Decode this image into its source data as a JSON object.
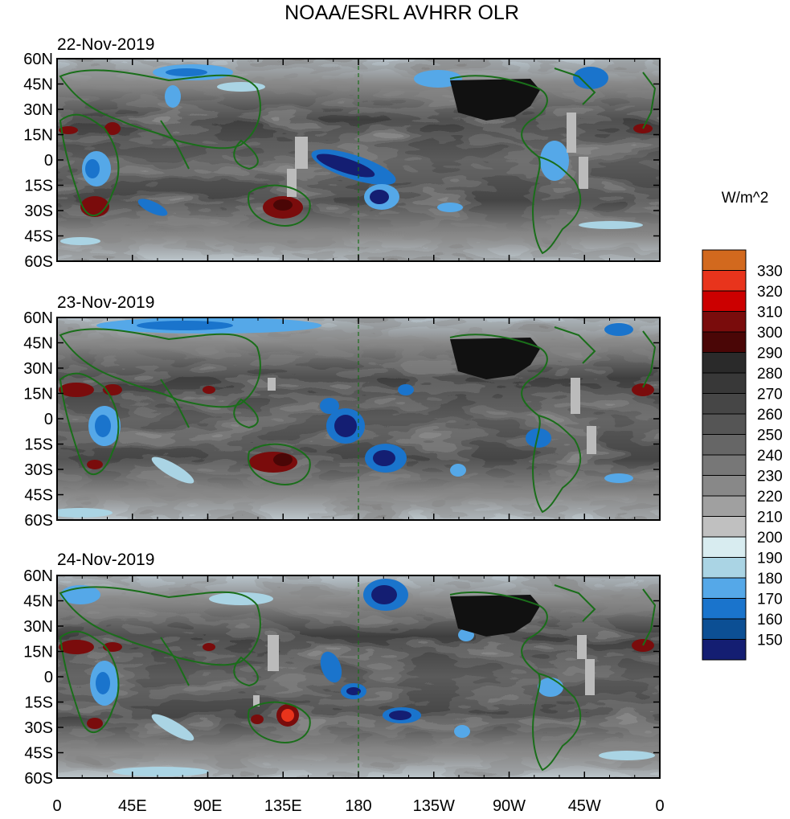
{
  "title": "NOAA/ESRL AVHRR OLR",
  "units_label": "W/m^2",
  "panels": [
    {
      "date": "22-Nov-2019"
    },
    {
      "date": "23-Nov-2019"
    },
    {
      "date": "24-Nov-2019"
    }
  ],
  "lat_labels": [
    "60N",
    "45N",
    "30N",
    "15N",
    "0",
    "15S",
    "30S",
    "45S",
    "60S"
  ],
  "lon_labels": [
    "0",
    "45E",
    "90E",
    "135E",
    "180",
    "135W",
    "90W",
    "45W",
    "0"
  ],
  "colorbar": {
    "levels": [
      "330",
      "320",
      "310",
      "300",
      "290",
      "280",
      "270",
      "260",
      "250",
      "240",
      "230",
      "220",
      "210",
      "200",
      "190",
      "180",
      "170",
      "160",
      "150"
    ],
    "colors": [
      "#d2691e",
      "#e8341c",
      "#cc0000",
      "#7a0c0c",
      "#4a0606",
      "#2a2a2a",
      "#383838",
      "#464646",
      "#555555",
      "#666666",
      "#777777",
      "#888888",
      "#a0a0a0",
      "#c0c0c0",
      "#d8ecf0",
      "#aad4e4",
      "#55a8e8",
      "#1a74cc",
      "#0c4f94",
      "#141e72"
    ]
  }
}
